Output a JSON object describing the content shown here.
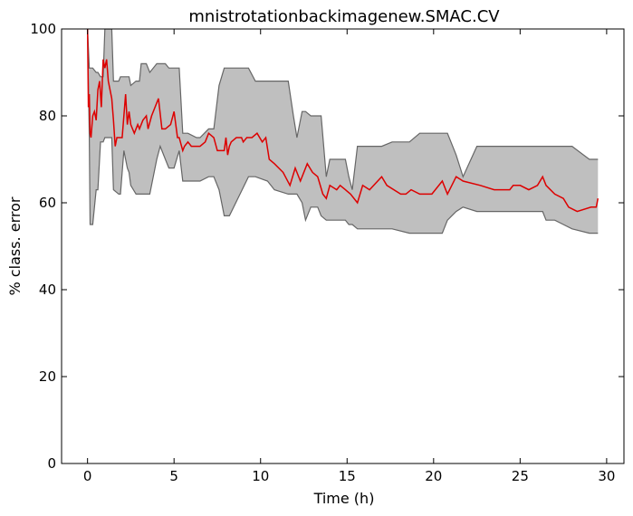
{
  "chart_data": {
    "type": "line",
    "title": "mnistrotationbackimagenew.SMAC.CV",
    "xlabel": "Time (h)",
    "ylabel": "% class. error",
    "xlim": [
      -1.5,
      31
    ],
    "ylim": [
      0,
      100
    ],
    "x_ticks": [
      0,
      5,
      10,
      15,
      20,
      25,
      30
    ],
    "x_tick_labels": [
      "0",
      "5",
      "10",
      "15",
      "20",
      "25",
      "30"
    ],
    "y_ticks": [
      0,
      20,
      40,
      60,
      80,
      100
    ],
    "y_tick_labels": [
      "0",
      "20",
      "40",
      "60",
      "80",
      "100"
    ],
    "grid": false,
    "colors": {
      "line": "#dd0000",
      "band_fill": "#bfbfbf",
      "band_edge": "#666666"
    },
    "series": [
      {
        "role": "median",
        "x": [
          0.0,
          0.05,
          0.1,
          0.15,
          0.2,
          0.3,
          0.4,
          0.5,
          0.6,
          0.7,
          0.8,
          0.9,
          1.0,
          1.1,
          1.2,
          1.3,
          1.4,
          1.5,
          1.6,
          1.7,
          1.8,
          2.0,
          2.2,
          2.3,
          2.4,
          2.5,
          2.7,
          2.9,
          3.0,
          3.2,
          3.4,
          3.5,
          3.7,
          3.9,
          4.1,
          4.3,
          4.5,
          4.8,
          5.0,
          5.2,
          5.3,
          5.5,
          5.6,
          5.8,
          6.0,
          6.2,
          6.5,
          6.8,
          7.0,
          7.3,
          7.5,
          7.9,
          8.0,
          8.1,
          8.2,
          8.3,
          8.6,
          8.9,
          9.0,
          9.2,
          9.5,
          9.8,
          10.1,
          10.3,
          10.5,
          10.8,
          11.3,
          11.7,
          12.0,
          12.3,
          12.7,
          13.0,
          13.3,
          13.6,
          13.8,
          14.0,
          14.4,
          14.6,
          14.9,
          15.2,
          15.6,
          15.9,
          16.3,
          17.0,
          17.3,
          18.1,
          18.4,
          18.7,
          19.2,
          19.9,
          20.5,
          20.8,
          21.3,
          21.7,
          22.7,
          23.5,
          24.4,
          24.6,
          25.0,
          25.5,
          26.0,
          26.3,
          26.5,
          27.0,
          27.5,
          27.8,
          28.3,
          29.1,
          29.4,
          29.5
        ],
        "y": [
          100,
          82,
          85,
          76,
          75,
          80,
          81,
          79,
          86,
          88,
          82,
          93,
          91,
          93,
          88,
          86,
          84,
          79,
          73,
          75,
          75,
          75,
          85,
          78,
          81,
          78,
          76,
          78,
          77,
          79,
          80,
          77,
          80,
          82,
          84,
          77,
          77,
          78,
          81,
          75,
          75,
          72,
          73,
          74,
          73,
          73,
          73,
          74,
          76,
          75,
          72,
          72,
          75,
          71,
          73,
          74,
          75,
          75,
          74,
          75,
          75,
          76,
          74,
          75,
          70,
          69,
          67,
          64,
          68,
          65,
          69,
          67,
          66,
          62,
          61,
          64,
          63,
          64,
          63,
          62,
          60,
          64,
          63,
          66,
          64,
          62,
          62,
          63,
          62,
          62,
          65,
          62,
          66,
          65,
          64,
          63,
          63,
          64,
          64,
          63,
          64,
          66,
          64,
          62,
          61,
          59,
          58,
          59,
          59,
          61
        ]
      }
    ],
    "band": {
      "role": "quartile range",
      "x": [
        0.0,
        0.1,
        0.15,
        0.3,
        0.5,
        0.6,
        0.75,
        0.9,
        1.0,
        1.1,
        1.4,
        1.5,
        1.8,
        1.9,
        2.1,
        2.3,
        2.4,
        2.5,
        2.8,
        3.0,
        3.1,
        3.4,
        3.6,
        4.0,
        4.2,
        4.5,
        4.7,
        5.0,
        5.3,
        5.5,
        5.8,
        6.3,
        6.5,
        7.0,
        7.3,
        7.6,
        7.9,
        8.2,
        9.3,
        9.7,
        10.4,
        10.8,
        11.6,
        11.9,
        12.1,
        12.4,
        12.6,
        12.9,
        13.3,
        13.5,
        13.8,
        14.0,
        14.4,
        14.9,
        15.1,
        15.3,
        15.6,
        17.0,
        17.6,
        18.6,
        19.2,
        20.0,
        20.5,
        20.8,
        21.3,
        21.7,
        22.5,
        24.0,
        24.5,
        26.3,
        26.5,
        27.0,
        27.5,
        28.0,
        29.0,
        29.5
      ],
      "upper": [
        100,
        91,
        91,
        91,
        90,
        90,
        89,
        89,
        100,
        100,
        100,
        88,
        88,
        89,
        89,
        89,
        89,
        87,
        88,
        88,
        92,
        92,
        90,
        92,
        92,
        92,
        91,
        91,
        91,
        76,
        76,
        75,
        75,
        77,
        77,
        87,
        91,
        91,
        91,
        88,
        88,
        88,
        88,
        80,
        75,
        81,
        81,
        80,
        80,
        80,
        66,
        70,
        70,
        70,
        66,
        63,
        73,
        73,
        74,
        74,
        76,
        76,
        76,
        76,
        71,
        66,
        73,
        73,
        73,
        73,
        73,
        73,
        73,
        73,
        70,
        70
      ],
      "lower": [
        100,
        75,
        55,
        55,
        63,
        63,
        74,
        74,
        75,
        75,
        75,
        63,
        62,
        62,
        72,
        68,
        67,
        64,
        62,
        62,
        62,
        62,
        62,
        70,
        73,
        70,
        68,
        68,
        72,
        65,
        65,
        65,
        65,
        66,
        66,
        63,
        57,
        57,
        66,
        66,
        65,
        63,
        62,
        62,
        62,
        60,
        56,
        59,
        59,
        57,
        56,
        56,
        56,
        56,
        55,
        55,
        54,
        54,
        54,
        53,
        53,
        53,
        53,
        56,
        58,
        59,
        58,
        58,
        58,
        58,
        56,
        56,
        55,
        54,
        53,
        53
      ]
    }
  }
}
